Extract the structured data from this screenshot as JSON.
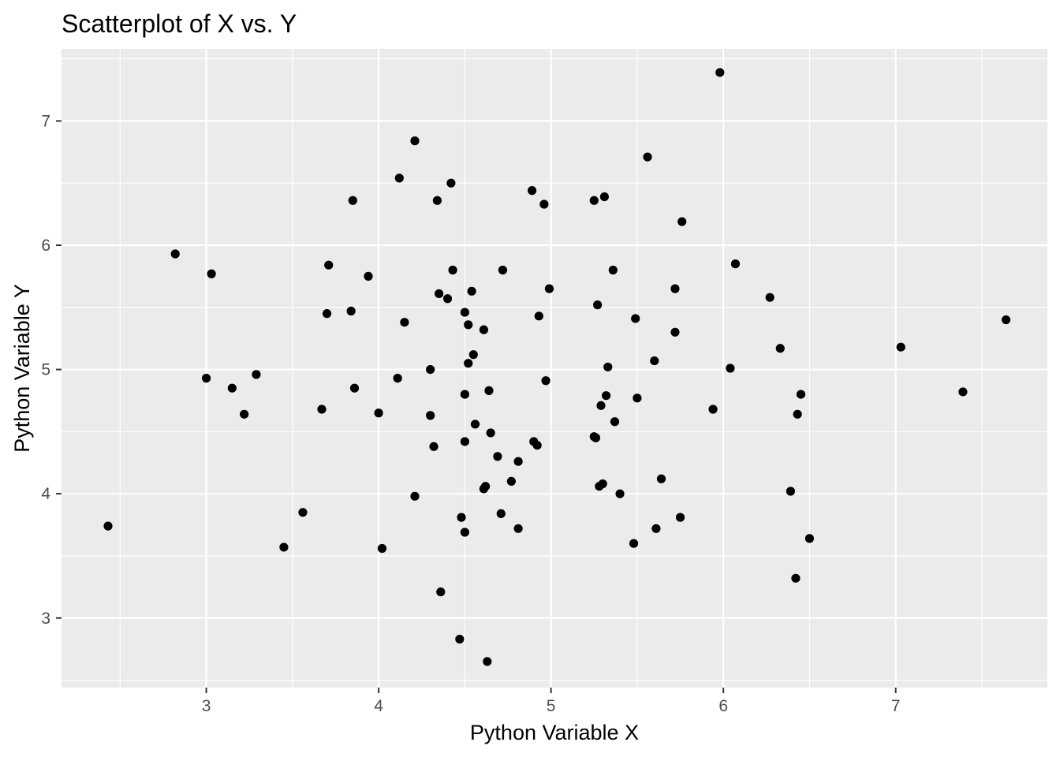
{
  "chart_data": {
    "type": "scatter",
    "title": "Scatterplot of X vs. Y",
    "xlabel": "Python Variable X",
    "ylabel": "Python Variable Y",
    "xlim": [
      2.16,
      7.88
    ],
    "ylim": [
      2.44,
      7.58
    ],
    "x_ticks": [
      3,
      4,
      5,
      6,
      7
    ],
    "y_ticks": [
      3,
      4,
      5,
      6,
      7
    ],
    "x_minor_ticks": [
      2.5,
      3.5,
      4.5,
      5.5,
      6.5,
      7.5
    ],
    "y_minor_ticks": [
      2.5,
      3.5,
      4.5,
      5.5,
      6.5,
      7.5
    ],
    "x_tick_labels": [
      "3",
      "4",
      "5",
      "6",
      "7"
    ],
    "y_tick_labels": [
      "3",
      "4",
      "5",
      "6",
      "7"
    ],
    "grid": true,
    "legend": "none",
    "colors": {
      "panel": "#EBEBEB",
      "grid": "#FFFFFF",
      "point": "#000000",
      "tick_text": "#4D4D4D"
    },
    "points": [
      [
        2.43,
        3.74
      ],
      [
        2.82,
        5.93
      ],
      [
        3.0,
        4.93
      ],
      [
        3.03,
        5.77
      ],
      [
        3.15,
        4.85
      ],
      [
        3.22,
        4.64
      ],
      [
        3.29,
        4.96
      ],
      [
        3.45,
        3.57
      ],
      [
        3.56,
        3.85
      ],
      [
        3.67,
        4.68
      ],
      [
        3.7,
        5.45
      ],
      [
        3.71,
        5.84
      ],
      [
        3.84,
        5.47
      ],
      [
        3.85,
        6.36
      ],
      [
        3.86,
        4.85
      ],
      [
        3.94,
        5.75
      ],
      [
        4.0,
        4.65
      ],
      [
        4.02,
        3.56
      ],
      [
        4.11,
        4.93
      ],
      [
        4.12,
        6.54
      ],
      [
        4.15,
        5.38
      ],
      [
        4.21,
        6.84
      ],
      [
        4.21,
        3.98
      ],
      [
        4.3,
        4.63
      ],
      [
        4.3,
        5.0
      ],
      [
        4.32,
        4.38
      ],
      [
        4.34,
        6.36
      ],
      [
        4.35,
        5.61
      ],
      [
        4.36,
        3.21
      ],
      [
        4.4,
        5.57
      ],
      [
        4.42,
        6.5
      ],
      [
        4.43,
        5.8
      ],
      [
        4.47,
        2.83
      ],
      [
        4.48,
        3.81
      ],
      [
        4.5,
        5.46
      ],
      [
        4.5,
        4.42
      ],
      [
        4.5,
        3.69
      ],
      [
        4.5,
        4.8
      ],
      [
        4.52,
        5.05
      ],
      [
        4.52,
        5.36
      ],
      [
        4.54,
        5.63
      ],
      [
        4.55,
        5.12
      ],
      [
        4.56,
        4.56
      ],
      [
        4.61,
        5.32
      ],
      [
        4.61,
        4.04
      ],
      [
        4.62,
        4.06
      ],
      [
        4.63,
        2.65
      ],
      [
        4.64,
        4.83
      ],
      [
        4.65,
        4.49
      ],
      [
        4.69,
        4.3
      ],
      [
        4.71,
        3.84
      ],
      [
        4.72,
        5.8
      ],
      [
        4.77,
        4.1
      ],
      [
        4.81,
        4.26
      ],
      [
        4.81,
        3.72
      ],
      [
        4.89,
        6.44
      ],
      [
        4.9,
        4.42
      ],
      [
        4.92,
        4.39
      ],
      [
        4.93,
        5.43
      ],
      [
        4.96,
        6.33
      ],
      [
        4.97,
        4.91
      ],
      [
        4.99,
        5.65
      ],
      [
        5.25,
        6.36
      ],
      [
        5.25,
        4.46
      ],
      [
        5.26,
        4.45
      ],
      [
        5.27,
        5.52
      ],
      [
        5.28,
        4.06
      ],
      [
        5.29,
        4.71
      ],
      [
        5.3,
        4.08
      ],
      [
        5.31,
        6.39
      ],
      [
        5.32,
        4.79
      ],
      [
        5.33,
        5.02
      ],
      [
        5.36,
        5.8
      ],
      [
        5.37,
        4.58
      ],
      [
        5.4,
        4.0
      ],
      [
        5.48,
        3.6
      ],
      [
        5.49,
        5.41
      ],
      [
        5.5,
        4.77
      ],
      [
        5.56,
        6.71
      ],
      [
        5.6,
        5.07
      ],
      [
        5.61,
        3.72
      ],
      [
        5.64,
        4.12
      ],
      [
        5.72,
        5.65
      ],
      [
        5.72,
        5.3
      ],
      [
        5.75,
        3.81
      ],
      [
        5.76,
        6.19
      ],
      [
        5.94,
        4.68
      ],
      [
        5.98,
        7.39
      ],
      [
        6.04,
        5.01
      ],
      [
        6.07,
        5.85
      ],
      [
        6.27,
        5.58
      ],
      [
        6.33,
        5.17
      ],
      [
        6.39,
        4.02
      ],
      [
        6.42,
        3.32
      ],
      [
        6.43,
        4.64
      ],
      [
        6.45,
        4.8
      ],
      [
        6.5,
        3.64
      ],
      [
        7.03,
        5.18
      ],
      [
        7.39,
        4.82
      ],
      [
        7.64,
        5.4
      ]
    ]
  }
}
